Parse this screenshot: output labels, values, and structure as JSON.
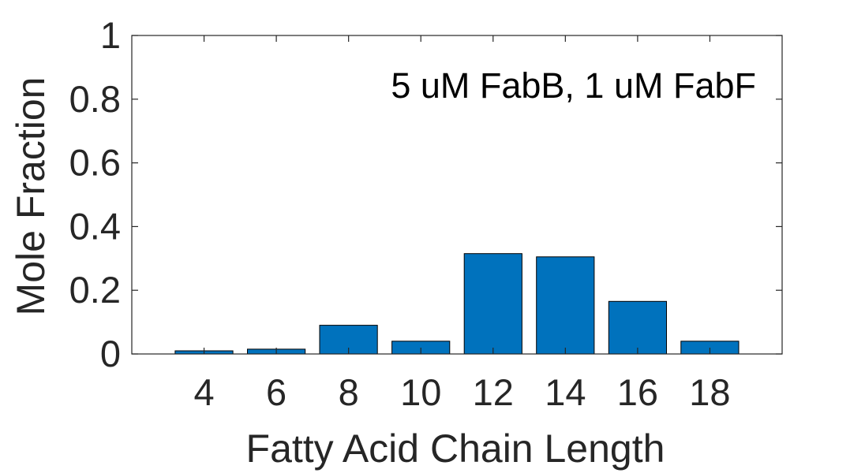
{
  "chart_data": {
    "type": "bar",
    "categories": [
      "4",
      "6",
      "8",
      "10",
      "12",
      "14",
      "16",
      "18"
    ],
    "values": [
      0.01,
      0.015,
      0.09,
      0.04,
      0.315,
      0.305,
      0.165,
      0.04
    ],
    "x_range": [
      2,
      20
    ],
    "ylim": [
      0,
      1
    ],
    "yticks": [
      "0",
      "0.2",
      "0.4",
      "0.6",
      "0.8",
      "1"
    ],
    "ytick_values": [
      0,
      0.2,
      0.4,
      0.6,
      0.8,
      1
    ],
    "xlabel": "Fatty Acid Chain Length",
    "ylabel": "Mole Fraction",
    "annotation": "5 uM FabB, 1 uM FabF",
    "grid": false,
    "legend": "none",
    "bar_color": "#0072BD",
    "bar_edge_color": "#000000",
    "axis_color": "#262626"
  }
}
